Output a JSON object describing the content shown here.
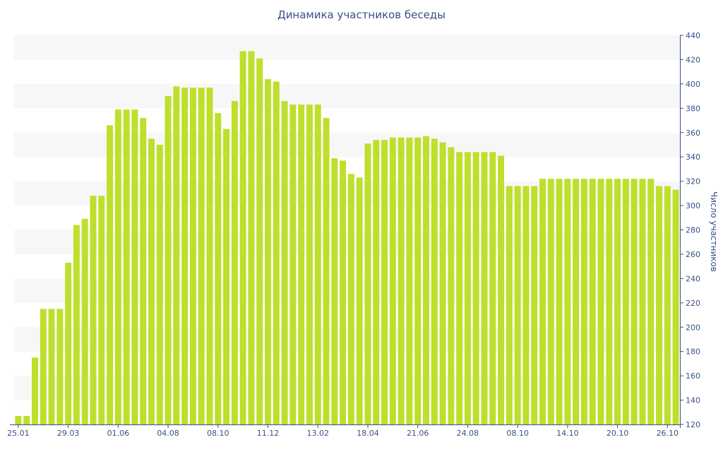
{
  "chart_data": {
    "type": "bar",
    "title": "Динамика участников беседы",
    "xlabel": "",
    "ylabel": "Число участников",
    "ylim": [
      120,
      440
    ],
    "y_ticks": [
      120,
      140,
      160,
      180,
      200,
      220,
      240,
      260,
      280,
      300,
      320,
      340,
      360,
      380,
      400,
      420,
      440
    ],
    "x_tick_labels": [
      {
        "index": 0,
        "label": "25.01"
      },
      {
        "index": 6,
        "label": "29.03"
      },
      {
        "index": 12,
        "label": "01.06"
      },
      {
        "index": 18,
        "label": "04.08"
      },
      {
        "index": 24,
        "label": "08.10"
      },
      {
        "index": 30,
        "label": "11.12"
      },
      {
        "index": 36,
        "label": "13.02"
      },
      {
        "index": 42,
        "label": "18.04"
      },
      {
        "index": 48,
        "label": "21.06"
      },
      {
        "index": 54,
        "label": "24.08"
      },
      {
        "index": 60,
        "label": "08.10"
      },
      {
        "index": 66,
        "label": "14.10"
      },
      {
        "index": 72,
        "label": "20.10"
      },
      {
        "index": 78,
        "label": "26.10"
      }
    ],
    "values": [
      127,
      127,
      175,
      215,
      215,
      215,
      253,
      284,
      289,
      308,
      308,
      366,
      379,
      379,
      379,
      372,
      355,
      350,
      390,
      398,
      397,
      397,
      397,
      397,
      376,
      363,
      386,
      427,
      427,
      421,
      404,
      402,
      386,
      383,
      383,
      383,
      383,
      372,
      339,
      337,
      326,
      323,
      351,
      354,
      354,
      356,
      356,
      356,
      356,
      357,
      355,
      352,
      348,
      344,
      344,
      344,
      344,
      344,
      341,
      316,
      316,
      316,
      316,
      322,
      322,
      322,
      322,
      322,
      322,
      322,
      322,
      322,
      322,
      322,
      322,
      322,
      322,
      316,
      316,
      313
    ],
    "bar_color": "#bedf2b",
    "band_color": "#f7f7f7",
    "axis_color": "#3a4f8a",
    "grid": "alternating horizontal bands",
    "legend": "none"
  }
}
